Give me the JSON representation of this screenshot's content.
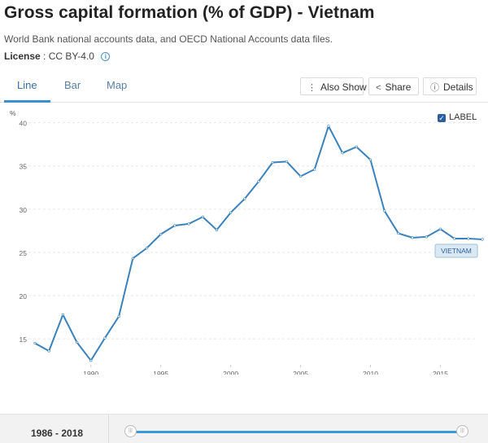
{
  "header": {
    "title": "Gross capital formation (% of GDP) - Vietnam",
    "source": "World Bank national accounts data, and OECD National Accounts data files.",
    "license_label": "License",
    "license_value": ": CC BY-4.0",
    "info_icon": "info-icon"
  },
  "tabs": [
    {
      "label": "Line",
      "active": true
    },
    {
      "label": "Bar",
      "active": false
    },
    {
      "label": "Map",
      "active": false
    }
  ],
  "toolbar": {
    "also_show_label": "Also Show",
    "also_show_icon": "vertical-dots-icon",
    "share_label": "Share",
    "share_icon": "share-icon",
    "details_label": "Details",
    "details_icon": "info-icon"
  },
  "legend_toggle": {
    "label": "LABEL",
    "checked": true
  },
  "chart_data": {
    "type": "line",
    "ylabel": "%",
    "ylim": [
      12,
      41
    ],
    "xlim": [
      1986,
      2018
    ],
    "y_ticks": [
      15,
      20,
      25,
      30,
      35,
      40
    ],
    "x_ticks": [
      1990,
      1995,
      2000,
      2005,
      2010,
      2015
    ],
    "grid": true,
    "series": [
      {
        "name": "VIETNAM",
        "color": "#3a82be",
        "x": [
          1986,
          1987,
          1988,
          1989,
          1990,
          1991,
          1992,
          1993,
          1994,
          1995,
          1996,
          1997,
          1998,
          1999,
          2000,
          2001,
          2002,
          2003,
          2004,
          2005,
          2006,
          2007,
          2008,
          2009,
          2010,
          2011,
          2012,
          2013,
          2014,
          2015,
          2016,
          2017,
          2018
        ],
        "values": [
          14.5,
          13.6,
          17.8,
          14.6,
          12.5,
          15.1,
          17.6,
          24.3,
          25.5,
          27.1,
          28.1,
          28.3,
          29.1,
          27.6,
          29.6,
          31.2,
          33.2,
          35.4,
          35.5,
          33.8,
          34.6,
          39.6,
          36.5,
          37.2,
          35.7,
          29.8,
          27.2,
          26.7,
          26.8,
          27.7,
          26.6,
          26.6,
          26.5
        ]
      }
    ]
  },
  "range": {
    "label": "1986 - 2018",
    "start_fraction": 0,
    "end_fraction": 1
  }
}
